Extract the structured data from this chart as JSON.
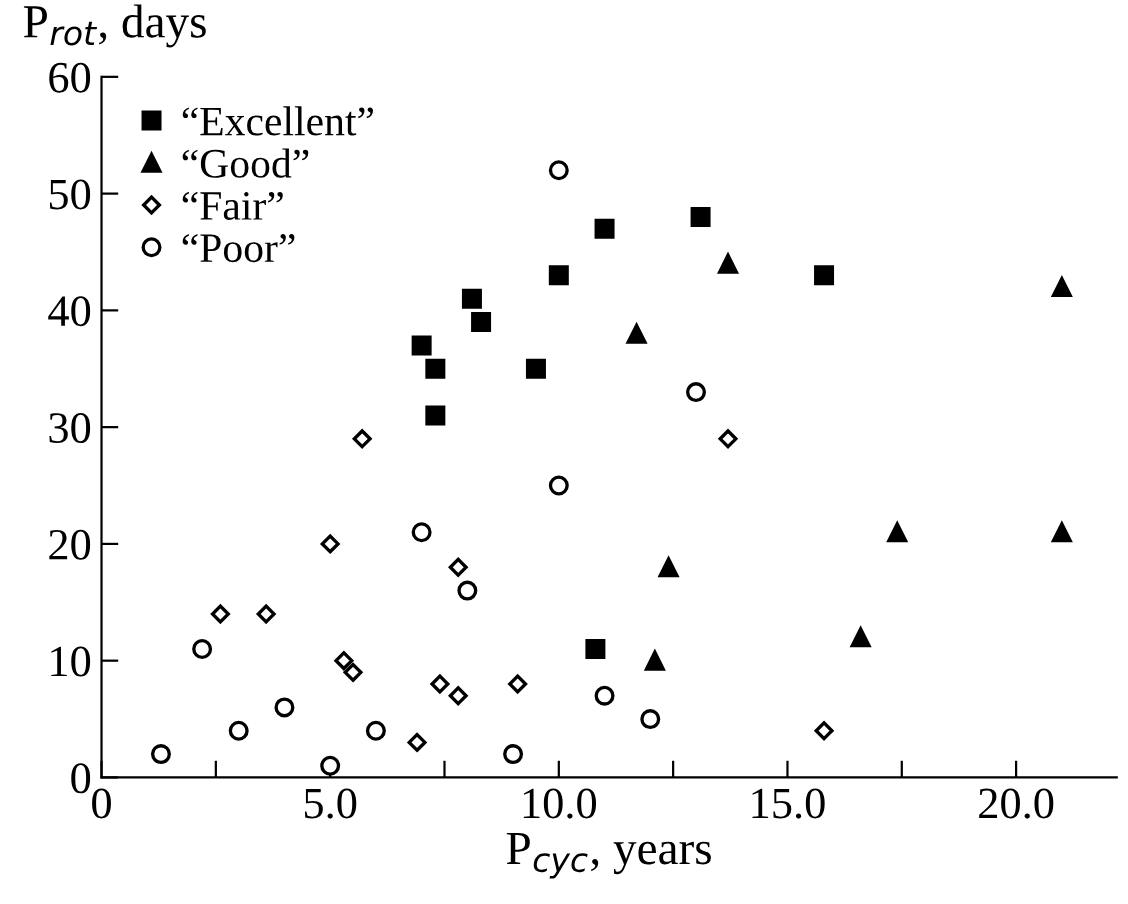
{
  "chart_data": {
    "type": "scatter",
    "xlabel": "P$_{cyc}$, years",
    "ylabel": "P$_{rot}$, days",
    "xlim": [
      0,
      22.2
    ],
    "ylim": [
      0,
      60
    ],
    "xticks": [
      {
        "value": 0,
        "label": "0"
      },
      {
        "value": 2.5,
        "label": null
      },
      {
        "value": 5,
        "label": "5.0"
      },
      {
        "value": 7.5,
        "label": null
      },
      {
        "value": 10,
        "label": "10.0"
      },
      {
        "value": 12.5,
        "label": null
      },
      {
        "value": 15,
        "label": "15.0"
      },
      {
        "value": 17.5,
        "label": null
      },
      {
        "value": 20,
        "label": "20.0"
      }
    ],
    "yticks": [
      0,
      10,
      20,
      30,
      40,
      50,
      60
    ],
    "grid": false,
    "legend": "top left",
    "series": [
      {
        "name": "“Excellent”",
        "color": "#000000",
        "marker": "square",
        "x": [
          7.0,
          7.3,
          7.3,
          8.1,
          8.3,
          9.5,
          10,
          11,
          13.1,
          15.8,
          10.8
        ],
        "values": [
          37,
          35,
          31,
          41,
          39,
          35,
          43,
          47,
          48,
          43,
          11
        ]
      },
      {
        "name": "“Good”",
        "color": "#000000",
        "marker": "triangle",
        "x": [
          11.7,
          13.7,
          21,
          12.4,
          12.1,
          16.6,
          17.4,
          21
        ],
        "values": [
          38,
          44,
          42,
          18,
          10,
          12,
          21,
          21
        ]
      },
      {
        "name": "“Fair”",
        "color": "#000000",
        "marker": "diamond",
        "x": [
          2.6,
          3.6,
          5,
          5.3,
          5.5,
          5.7,
          6.9,
          7.4,
          7.8,
          7.8,
          9.1,
          13.7,
          15.8
        ],
        "values": [
          14,
          14,
          20,
          10,
          9,
          29,
          3,
          8,
          7,
          18,
          8,
          29,
          4
        ]
      },
      {
        "name": "“Poor”",
        "color": "#000000",
        "marker": "circle",
        "x": [
          1.3,
          2.2,
          3.0,
          4.0,
          5.0,
          6.0,
          7.0,
          8.0,
          9.0,
          10,
          10,
          11,
          12,
          13
        ],
        "values": [
          2,
          11,
          4,
          6,
          1,
          4,
          21,
          16,
          2,
          52,
          25,
          7,
          5,
          33
        ]
      }
    ]
  }
}
